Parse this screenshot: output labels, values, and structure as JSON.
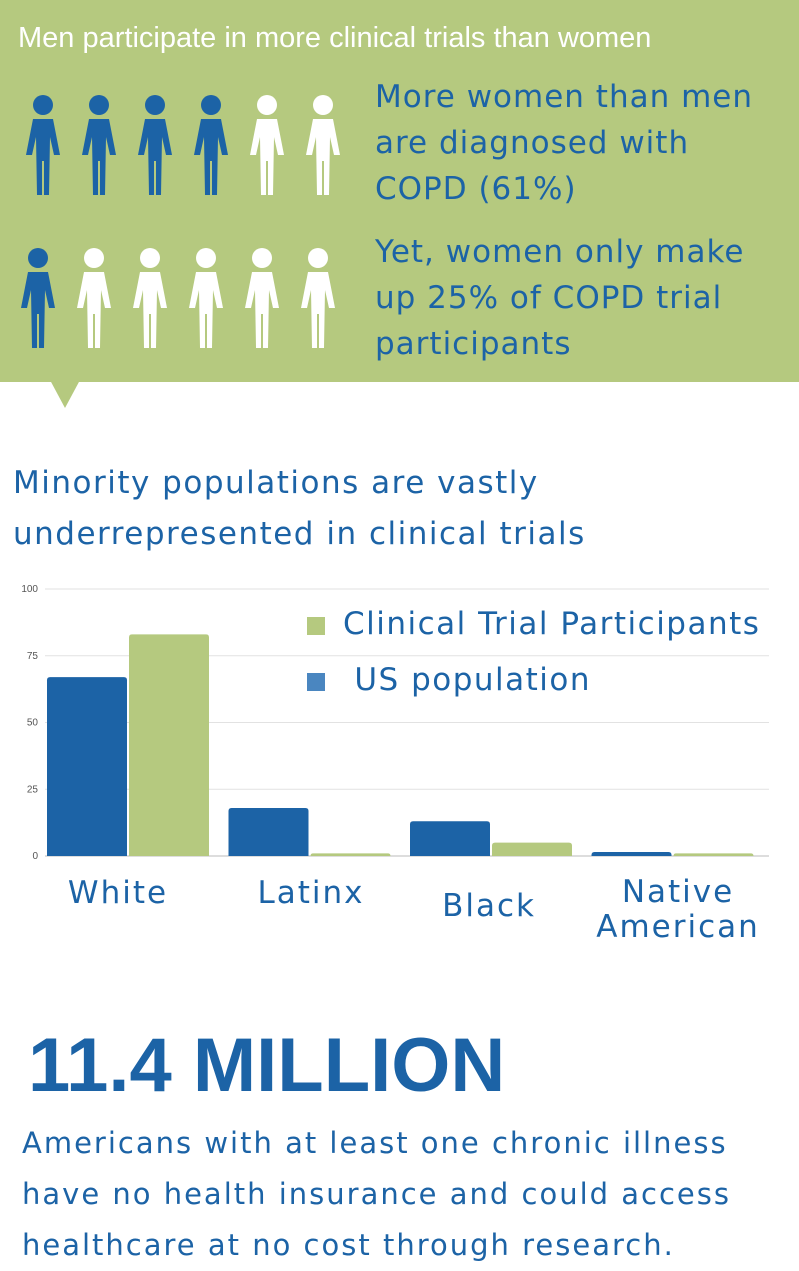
{
  "banner": {
    "title": "Men participate in more clinical trials than women",
    "stat1": "More women than men are diagnosed with COPD (61%)",
    "stat2": "Yet, women only make up 25% of COPD trial participants",
    "row1_blue_figures": 4,
    "row1_white_figures": 2,
    "row2_blue_figures": 1,
    "row2_white_figures": 5
  },
  "section": {
    "title": "Minority populations are vastly underrepresented in clinical trials"
  },
  "chart_data": {
    "type": "bar",
    "categories": [
      "White",
      "Latinx",
      "Black",
      "Native American"
    ],
    "series": [
      {
        "name": "US population",
        "values": [
          67,
          18,
          13,
          1.5
        ],
        "color": "#1c63a6"
      },
      {
        "name": "Clinical Trial Participants",
        "values": [
          83,
          1,
          5,
          1
        ],
        "color": "#b5c97f"
      }
    ],
    "legend_order": [
      "Clinical Trial Participants",
      " US population"
    ],
    "legend_colors": [
      "#b5c97f",
      "#4a86c0"
    ],
    "legend_position": "top-right",
    "yticks": [
      "0",
      "25",
      "50",
      "75",
      "100"
    ],
    "ylim": [
      0,
      100
    ],
    "grid": true
  },
  "stat_big": {
    "number": "11.4 MILLION",
    "text": "Americans with at least one chronic illness have no health insurance and could access healthcare at no cost through research."
  },
  "colors": {
    "blue": "#1c63a6",
    "green": "#b5c97f",
    "white": "#ffffff"
  }
}
